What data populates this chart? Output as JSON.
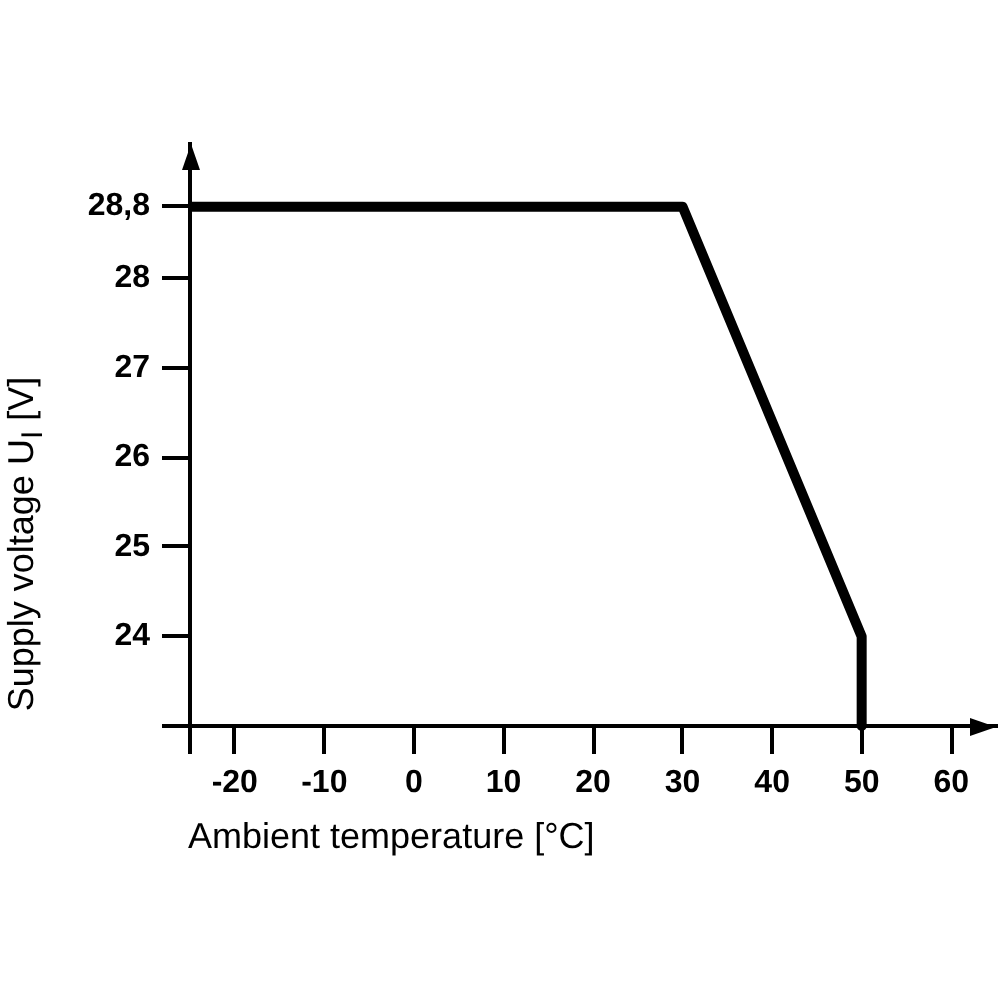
{
  "chart_data": {
    "type": "line",
    "xlabel": "Ambient temperature [°C]",
    "ylabel": "Supply voltage U$_{I}$ [V]",
    "x": [
      -25,
      30,
      50,
      50
    ],
    "values": [
      28.8,
      28.8,
      24,
      23
    ],
    "color": "#000000",
    "xlim": [
      -25,
      65
    ],
    "ylim": [
      23,
      29.5
    ],
    "xticks": [
      -20,
      -10,
      0,
      10,
      20,
      30,
      40,
      50,
      60
    ],
    "yticks": [
      24,
      25,
      26,
      27,
      28,
      {
        "value": 28.8,
        "label": "28,8"
      }
    ]
  }
}
